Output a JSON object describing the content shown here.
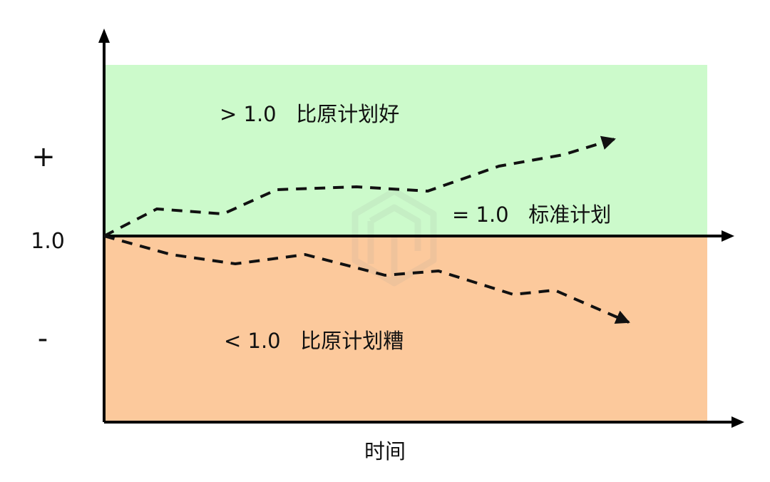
{
  "colors": {
    "above_region": "#ccfacb",
    "below_region": "#fcc99c",
    "axis": "#000000",
    "dashed_line": "#111111"
  },
  "y_axis": {
    "plus_label": "+",
    "baseline_label": "1.0",
    "minus_label": "-"
  },
  "x_axis": {
    "label": "时间"
  },
  "regions": {
    "above_label": "> 1.0   比原计划好",
    "baseline_label": "= 1.0   标准计划",
    "below_label": "< 1.0   比原计划糟"
  },
  "watermark": "logo-watermark"
}
